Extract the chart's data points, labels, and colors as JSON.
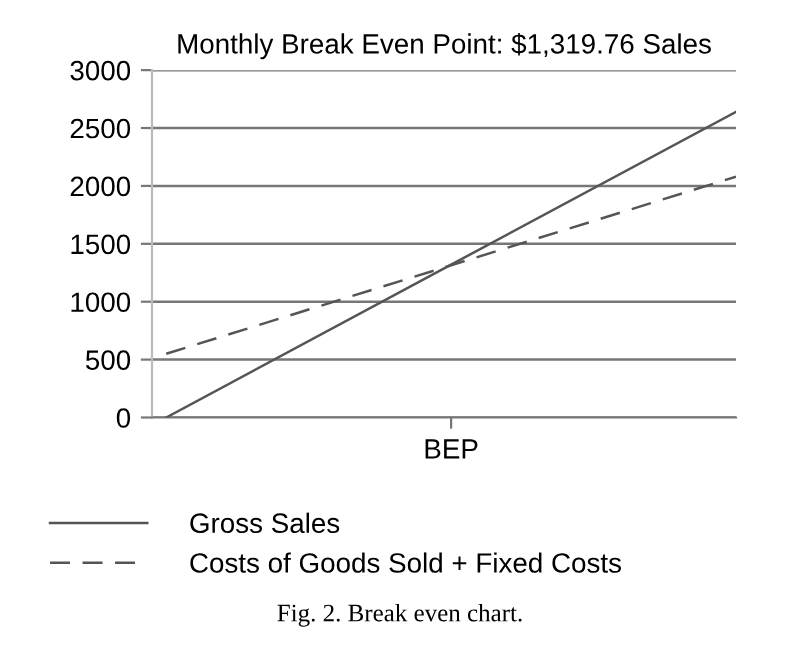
{
  "chart_data": {
    "type": "line",
    "title": "Monthly Break Even Point: $1,319.76 Sales",
    "categories": [
      null,
      "BEP",
      null
    ],
    "series": [
      {
        "name": "Gross Sales",
        "color": "#555555",
        "values": [
          0,
          1320,
          2640
        ],
        "line_style": "solid"
      },
      {
        "name": "Costs of Goods Sold + Fixed Costs",
        "color": "#555555",
        "values": [
          550,
          1315,
          2080
        ],
        "line_style": "dashed"
      }
    ],
    "ylim": [
      0,
      3000
    ],
    "yticks": [
      0,
      500,
      1000,
      1500,
      2000,
      2500,
      3000
    ],
    "grid": "y",
    "legend": "bottom",
    "annotations": [
      "Fig. 2. Break even chart."
    ]
  }
}
